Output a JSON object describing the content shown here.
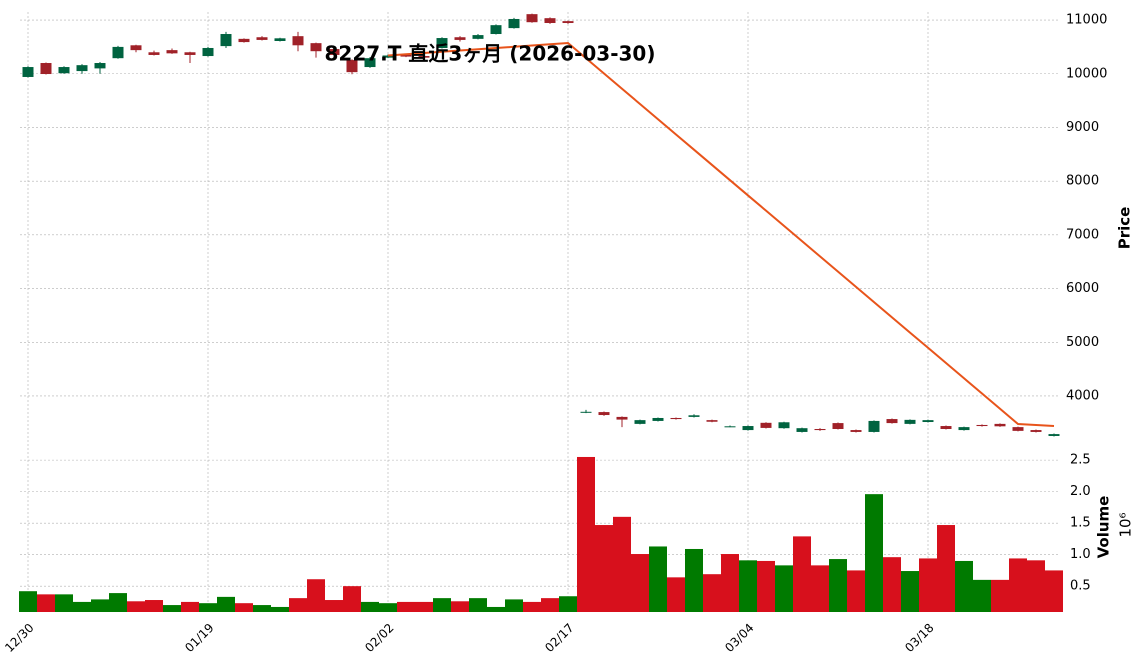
{
  "chart_data": {
    "type": "candlestick",
    "title": "8227.T 直近3ヶ月 (2026-03-30)",
    "categories": [
      "12/30",
      null,
      null,
      null,
      null,
      null,
      null,
      null,
      null,
      null,
      "01/19",
      null,
      null,
      null,
      null,
      null,
      null,
      null,
      null,
      null,
      "02/02",
      null,
      null,
      null,
      null,
      null,
      null,
      null,
      null,
      null,
      "02/17",
      null,
      null,
      null,
      null,
      null,
      null,
      null,
      null,
      null,
      "03/04",
      null,
      null,
      null,
      null,
      null,
      null,
      null,
      null,
      null,
      "03/18",
      null,
      null,
      null,
      null,
      null,
      null,
      null
    ],
    "open": [
      9940,
      10200,
      10010,
      10050,
      10100,
      10290,
      10530,
      10400,
      10440,
      10400,
      10330,
      10515,
      10650,
      10680,
      10610,
      10700,
      10570,
      10460,
      10255,
      10125,
      10300,
      10350,
      10330,
      10480,
      10680,
      10650,
      10740,
      10850,
      11110,
      11035,
      10980,
      3695,
      3700,
      3610,
      3480,
      3535,
      3590,
      3610,
      3550,
      3430,
      3365,
      3500,
      3400,
      3330,
      3385,
      3495,
      3365,
      3330,
      3570,
      3480,
      3515,
      3440,
      3365,
      3460,
      3480,
      3420,
      3365,
      3255
    ],
    "high": [
      10140,
      10210,
      10140,
      10180,
      10220,
      10520,
      10540,
      10430,
      10470,
      10410,
      10500,
      10780,
      10660,
      10700,
      10670,
      10780,
      10580,
      10470,
      10270,
      10310,
      10360,
      10370,
      10350,
      10680,
      10700,
      10740,
      10920,
      11040,
      11120,
      11050,
      10990,
      3740,
      3710,
      3620,
      3560,
      3600,
      3600,
      3660,
      3560,
      3450,
      3450,
      3510,
      3520,
      3410,
      3400,
      3505,
      3375,
      3545,
      3580,
      3565,
      3560,
      3450,
      3430,
      3470,
      3490,
      3430,
      3375,
      3300
    ],
    "low": [
      9930,
      9985,
      10000,
      10000,
      10000,
      10280,
      10400,
      10340,
      10370,
      10200,
      10320,
      10480,
      10580,
      10620,
      10600,
      10420,
      10300,
      10340,
      9990,
      10110,
      10290,
      10310,
      10290,
      10470,
      10600,
      10640,
      10730,
      10840,
      10950,
      10930,
      10930,
      3680,
      3630,
      3420,
      3470,
      3525,
      3560,
      3600,
      3510,
      3420,
      3355,
      3395,
      3390,
      3320,
      3350,
      3375,
      3320,
      3320,
      3485,
      3470,
      3505,
      3375,
      3355,
      3430,
      3425,
      3340,
      3320,
      3245
    ],
    "close": [
      10125,
      9995,
      10125,
      10160,
      10200,
      10500,
      10440,
      10350,
      10380,
      10350,
      10480,
      10740,
      10590,
      10630,
      10660,
      10530,
      10420,
      10350,
      10030,
      10290,
      10340,
      10320,
      10300,
      10665,
      10630,
      10720,
      10905,
      11020,
      10960,
      10945,
      10945,
      3705,
      3645,
      3560,
      3550,
      3590,
      3570,
      3640,
      3520,
      3435,
      3440,
      3405,
      3510,
      3400,
      3365,
      3385,
      3330,
      3535,
      3495,
      3555,
      3550,
      3385,
      3420,
      3440,
      3435,
      3350,
      3330,
      3290
    ],
    "up_color": "#006340",
    "down_color": "#a02128",
    "ylabel": "Price",
    "ylim": [
      3180,
      11150
    ],
    "yticks": [
      4000,
      5000,
      6000,
      7000,
      8000,
      9000,
      10000,
      11000
    ],
    "grid": true,
    "ma": {
      "color": "#e8541b",
      "values": [
        null,
        null,
        null,
        null,
        null,
        null,
        null,
        null,
        null,
        null,
        null,
        null,
        null,
        null,
        null,
        null,
        null,
        null,
        null,
        null,
        10340,
        10363,
        10386,
        10410,
        10433,
        10456,
        10479,
        10502,
        10526,
        10549,
        10572,
        10288,
        10004,
        9721,
        9437,
        9153,
        8869,
        8586,
        8302,
        8018,
        7734,
        7451,
        7167,
        6883,
        6599,
        6316,
        6032,
        5748,
        5464,
        5180,
        4897,
        4613,
        4329,
        4045,
        3762,
        3478,
        3460,
        3441
      ]
    },
    "volume": {
      "ylabel": "Volume",
      "scale_label": "10⁶",
      "up_color": "#007a00",
      "down_color": "#d7101c",
      "ylim": [
        0.09,
        2.74
      ],
      "yticks": [
        0.5,
        {
          "value": 1.0,
          "label": "1.0"
        },
        1.5,
        {
          "value": 2.0,
          "label": "2.0"
        },
        2.5
      ],
      "values": [
        0.42,
        0.37,
        0.37,
        0.25,
        0.29,
        0.39,
        0.26,
        0.28,
        0.2,
        0.25,
        0.23,
        0.33,
        0.23,
        0.2,
        0.17,
        0.31,
        0.61,
        0.28,
        0.5,
        0.25,
        0.23,
        0.25,
        0.25,
        0.31,
        0.26,
        0.31,
        0.17,
        0.29,
        0.25,
        0.31,
        0.34,
        2.55,
        1.47,
        1.6,
        1.01,
        1.13,
        0.64,
        1.09,
        0.69,
        1.01,
        0.91,
        0.9,
        0.83,
        1.29,
        0.83,
        0.93,
        0.75,
        1.96,
        0.96,
        0.74,
        0.94,
        1.47,
        0.9,
        0.6,
        0.6,
        0.94,
        0.91,
        0.75
      ]
    }
  }
}
